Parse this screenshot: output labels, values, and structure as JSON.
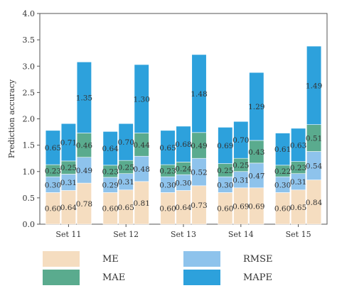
{
  "chart_data": {
    "type": "bar",
    "stacked": true,
    "ylabel": "Prediction accuracy",
    "ylim": [
      0,
      4.0
    ],
    "yticks": [
      "0.0",
      "0.5",
      "1.0",
      "1.5",
      "2.0",
      "2.5",
      "3.0",
      "3.5",
      "4.0"
    ],
    "groups": [
      {
        "label": "Set 11",
        "bars": [
          {
            "ME": 0.6,
            "MAE": 0.23,
            "RMSE": 0.3,
            "MAPE": 0.65
          },
          {
            "ME": 0.64,
            "MAE": 0.25,
            "RMSE": 0.31,
            "MAPE": 0.71
          },
          {
            "ME": 0.78,
            "MAE": 0.46,
            "RMSE": 0.49,
            "MAPE": 1.35
          }
        ]
      },
      {
        "label": "Set 12",
        "bars": [
          {
            "ME": 0.6,
            "MAE": 0.23,
            "RMSE": 0.29,
            "MAPE": 0.64
          },
          {
            "ME": 0.65,
            "MAE": 0.25,
            "RMSE": 0.31,
            "MAPE": 0.7
          },
          {
            "ME": 0.81,
            "MAE": 0.44,
            "RMSE": 0.48,
            "MAPE": 1.3
          }
        ]
      },
      {
        "label": "Set 13",
        "bars": [
          {
            "ME": 0.6,
            "MAE": 0.23,
            "RMSE": 0.3,
            "MAPE": 0.65
          },
          {
            "ME": 0.64,
            "MAE": 0.24,
            "RMSE": 0.3,
            "MAPE": 0.68
          },
          {
            "ME": 0.73,
            "MAE": 0.49,
            "RMSE": 0.52,
            "MAPE": 1.48
          }
        ]
      },
      {
        "label": "Set 14",
        "bars": [
          {
            "ME": 0.6,
            "MAE": 0.25,
            "RMSE": 0.3,
            "MAPE": 0.69
          },
          {
            "ME": 0.69,
            "MAE": 0.25,
            "RMSE": 0.31,
            "MAPE": 0.7
          },
          {
            "ME": 0.69,
            "MAE": 0.43,
            "RMSE": 0.47,
            "MAPE": 1.29
          }
        ]
      },
      {
        "label": "Set 15",
        "bars": [
          {
            "ME": 0.6,
            "MAE": 0.22,
            "RMSE": 0.3,
            "MAPE": 0.61
          },
          {
            "ME": 0.65,
            "MAE": 0.23,
            "RMSE": 0.31,
            "MAPE": 0.63
          },
          {
            "ME": 0.84,
            "MAE": 0.51,
            "RMSE": 0.54,
            "MAPE": 1.49
          }
        ]
      }
    ],
    "stack_order": [
      "ME",
      "RMSE",
      "MAE",
      "MAPE"
    ],
    "colors": {
      "ME": "#f5ddc0",
      "RMSE": "#8ec3ec",
      "MAE": "#5aab8e",
      "MAPE": "#2da1dc"
    },
    "legend": [
      {
        "key": "ME",
        "label": "ME"
      },
      {
        "key": "RMSE",
        "label": "RMSE"
      },
      {
        "key": "MAE",
        "label": "MAE"
      },
      {
        "key": "MAPE",
        "label": "MAPE"
      }
    ],
    "grid": false,
    "legend_position": "bottom"
  }
}
